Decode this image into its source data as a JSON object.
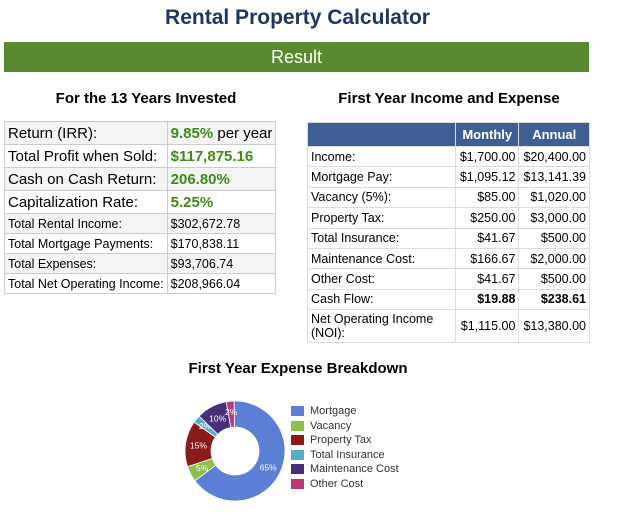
{
  "page": {
    "title": "Rental Property Calculator",
    "result_label": "Result"
  },
  "summary": {
    "heading": "For the 13 Years Invested",
    "rows": [
      {
        "label": "Return (IRR):",
        "value": "9.85%",
        "suffix": " per year",
        "highlight": true
      },
      {
        "label": "Total Profit when Sold:",
        "value": "$117,875.16",
        "suffix": "",
        "highlight": true
      },
      {
        "label": "Cash on Cash Return:",
        "value": "206.80%",
        "suffix": "",
        "highlight": true
      },
      {
        "label": "Capitalization Rate:",
        "value": "5.25%",
        "suffix": "",
        "highlight": true
      },
      {
        "label": "Total Rental Income:",
        "value": "$302,672.78",
        "suffix": "",
        "highlight": false
      },
      {
        "label": "Total Mortgage Payments:",
        "value": "$170,838.11",
        "suffix": "",
        "highlight": false
      },
      {
        "label": "Total Expenses:",
        "value": "$93,706.74",
        "suffix": "",
        "highlight": false
      },
      {
        "label": "Total Net Operating Income:",
        "value": "$208,966.04",
        "suffix": "",
        "highlight": false
      }
    ]
  },
  "income_expense": {
    "heading": "First Year Income and Expense",
    "columns": [
      "Monthly",
      "Annual"
    ],
    "rows": [
      {
        "label": "Income:",
        "monthly": "$1,700.00",
        "annual": "$20,400.00"
      },
      {
        "label": "Mortgage Pay:",
        "monthly": "$1,095.12",
        "annual": "$13,141.39"
      },
      {
        "label": "Vacancy (5%):",
        "monthly": "$85.00",
        "annual": "$1,020.00"
      },
      {
        "label": "Property Tax:",
        "monthly": "$250.00",
        "annual": "$3,000.00"
      },
      {
        "label": "Total Insurance:",
        "monthly": "$41.67",
        "annual": "$500.00"
      },
      {
        "label": "Maintenance Cost:",
        "monthly": "$166.67",
        "annual": "$2,000.00"
      },
      {
        "label": "Other Cost:",
        "monthly": "$41.67",
        "annual": "$500.00"
      },
      {
        "label": "Cash Flow:",
        "monthly": "$19.88",
        "annual": "$238.61"
      },
      {
        "label": "Net Operating Income (NOI):",
        "monthly": "$1,115.00",
        "annual": "$13,380.00"
      }
    ]
  },
  "chart_data": {
    "type": "pie",
    "title": "First Year Expense Breakdown",
    "donut": true,
    "categories": [
      "Mortgage",
      "Vacancy",
      "Property Tax",
      "Total Insurance",
      "Maintenance Cost",
      "Other Cost"
    ],
    "values": [
      13141.39,
      1020.0,
      3000.0,
      500.0,
      2000.0,
      500.0
    ],
    "data_labels": [
      "65%",
      "5%",
      "15%",
      "2%",
      "10%",
      "2%"
    ],
    "colors": [
      "#5b7fd6",
      "#8dc04a",
      "#8b1a1a",
      "#5aabc9",
      "#4a2e7a",
      "#c0367a"
    ],
    "legend_position": "right"
  }
}
